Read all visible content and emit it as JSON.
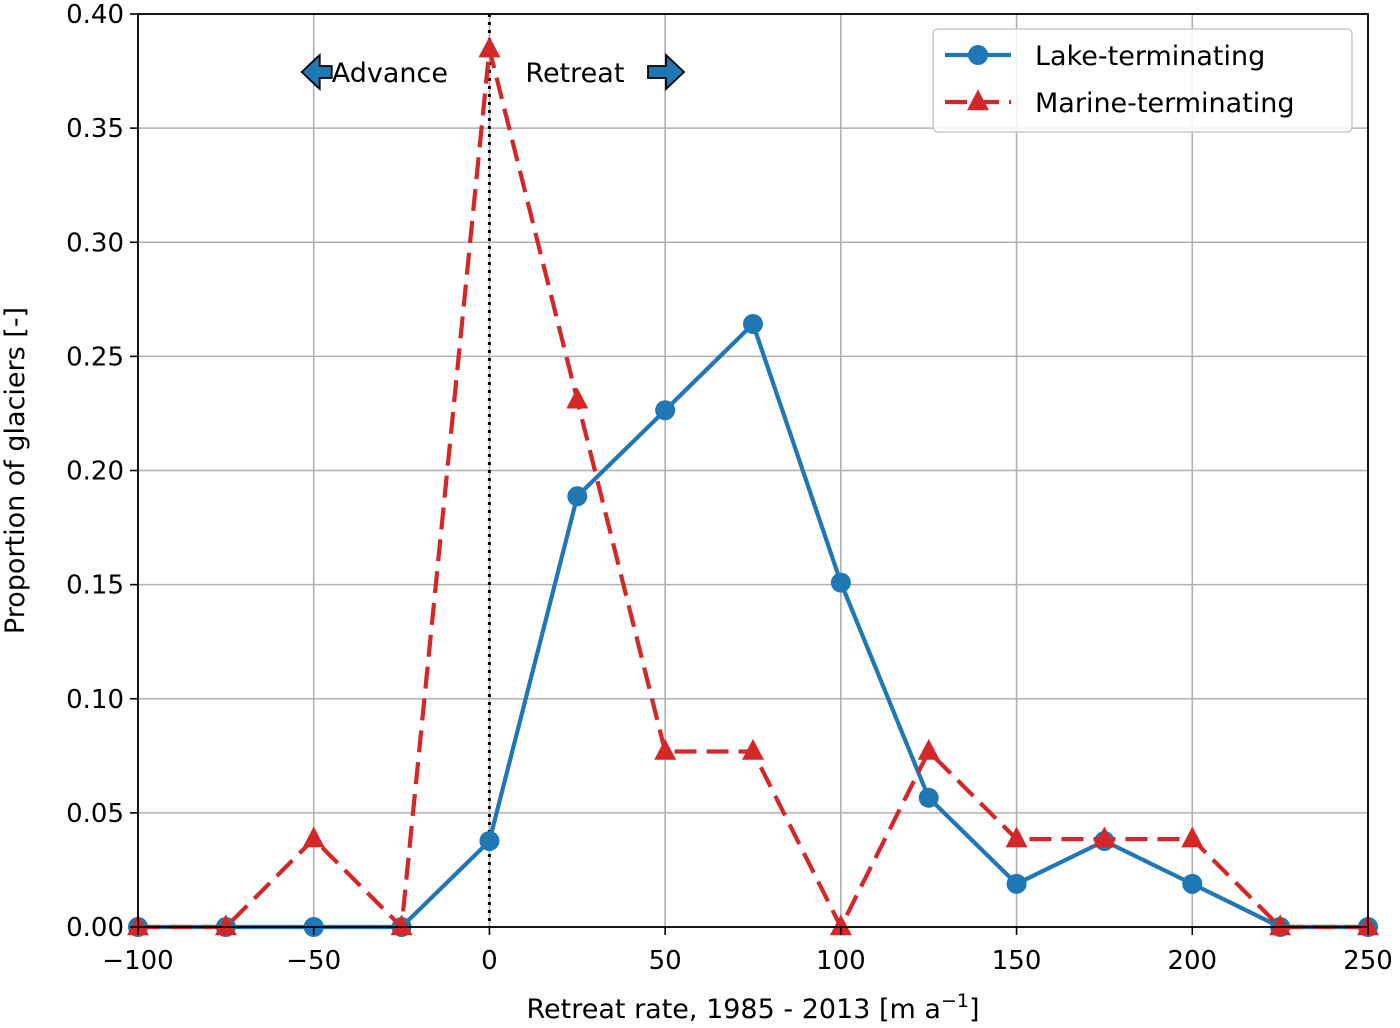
{
  "chart_data": {
    "type": "line",
    "title": "",
    "xlabel": "Retreat rate, 1985 - 2013 [m a",
    "xlabel_sup": "−1",
    "xlabel_end": "]",
    "ylabel": "Proportion of glaciers [-]",
    "xlim": [
      -100,
      250
    ],
    "ylim": [
      0,
      0.4
    ],
    "x_ticks": [
      -100,
      -50,
      0,
      50,
      100,
      150,
      200,
      250
    ],
    "x_tick_labels": [
      "−100",
      "−50",
      "0",
      "50",
      "100",
      "150",
      "200",
      "250"
    ],
    "y_ticks": [
      0,
      0.05,
      0.1,
      0.15,
      0.2,
      0.25,
      0.3,
      0.35,
      0.4
    ],
    "y_tick_labels": [
      "0.00",
      "0.05",
      "0.10",
      "0.15",
      "0.20",
      "0.25",
      "0.30",
      "0.35",
      "0.40"
    ],
    "grid": true,
    "legend_position": "top-right",
    "x": [
      -100,
      -75,
      -50,
      -25,
      0,
      25,
      50,
      75,
      100,
      125,
      150,
      175,
      200,
      225,
      250
    ],
    "series": [
      {
        "name": "Lake-terminating",
        "color": "#1f77b4",
        "line_style": "solid",
        "marker": "circle",
        "values": [
          0,
          0,
          0,
          0,
          0.0377,
          0.1887,
          0.2264,
          0.2642,
          0.1509,
          0.0566,
          0.0189,
          0.0377,
          0.0189,
          0,
          0
        ]
      },
      {
        "name": "Marine-terminating",
        "color": "#d62728",
        "line_style": "dashed",
        "marker": "triangle",
        "values": [
          0,
          0,
          0.0385,
          0,
          0.3846,
          0.2308,
          0.0769,
          0.0769,
          0,
          0.0769,
          0.0385,
          0.0385,
          0.0385,
          0,
          0
        ]
      }
    ],
    "reference_line": {
      "x": 0,
      "style": "dotted",
      "color": "#000000"
    },
    "annotations": {
      "advance": "Advance",
      "retreat": "Retreat",
      "arrow_color": "#1f77b4"
    }
  }
}
